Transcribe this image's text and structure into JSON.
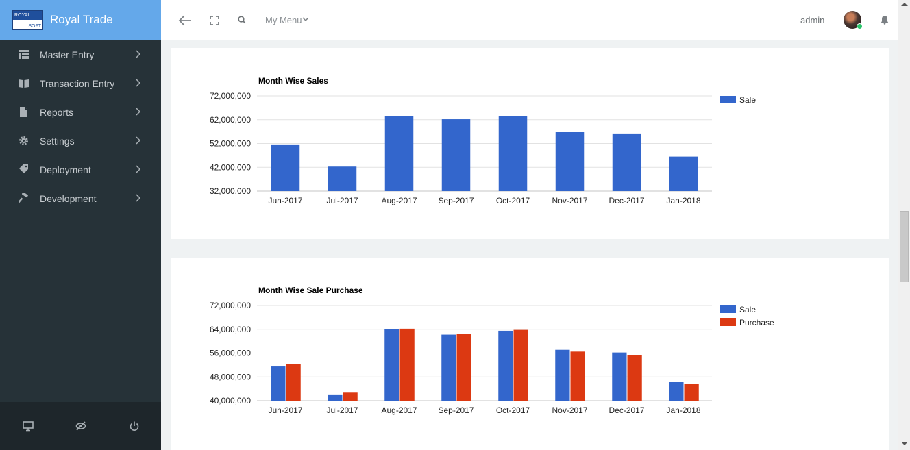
{
  "app": {
    "name": "Royal Trade",
    "logo_top": "ROYAL",
    "logo_bottom": "SOFT"
  },
  "sidebar": {
    "items": [
      {
        "label": "Master Entry",
        "icon": "table-icon"
      },
      {
        "label": "Transaction Entry",
        "icon": "book-icon"
      },
      {
        "label": "Reports",
        "icon": "file-icon"
      },
      {
        "label": "Settings",
        "icon": "gear-icon"
      },
      {
        "label": "Deployment",
        "icon": "tag-icon"
      },
      {
        "label": "Development",
        "icon": "hammer-icon"
      }
    ],
    "footer_icons": [
      "monitor-icon",
      "eye-off-icon",
      "power-icon"
    ]
  },
  "topbar": {
    "menu_label": "My Menu",
    "user_name": "admin",
    "icons": [
      "back-arrow-icon",
      "fullscreen-icon",
      "search-icon",
      "chevron-down-icon",
      "bell-icon"
    ]
  },
  "colors": {
    "sidebar_bg": "#263238",
    "brand_bg": "#64a8ea",
    "sale": "#3366cc",
    "purchase": "#dc3912"
  },
  "chart_data": [
    {
      "type": "bar",
      "title": "Month Wise Sales",
      "categories": [
        "Jun-2017",
        "Jul-2017",
        "Aug-2017",
        "Sep-2017",
        "Oct-2017",
        "Nov-2017",
        "Dec-2017",
        "Jan-2018"
      ],
      "series": [
        {
          "name": "Sale",
          "values": [
            51600000,
            42300000,
            63600000,
            62200000,
            63400000,
            57000000,
            56200000,
            46500000
          ]
        }
      ],
      "ylim": [
        32000000,
        72000000
      ],
      "yticks": [
        32000000,
        42000000,
        52000000,
        62000000,
        72000000
      ],
      "ytick_labels": [
        "32,000,000",
        "42,000,000",
        "52,000,000",
        "62,000,000",
        "72,000,000"
      ],
      "legend": "right",
      "grid": true
    },
    {
      "type": "bar",
      "title": "Month Wise Sale Purchase",
      "categories": [
        "Jun-2017",
        "Jul-2017",
        "Aug-2017",
        "Sep-2017",
        "Oct-2017",
        "Nov-2017",
        "Dec-2017",
        "Jan-2018"
      ],
      "series": [
        {
          "name": "Sale",
          "values": [
            51500000,
            42100000,
            64000000,
            62200000,
            63500000,
            57100000,
            56200000,
            46300000
          ]
        },
        {
          "name": "Purchase",
          "values": [
            52300000,
            42700000,
            64200000,
            62400000,
            63800000,
            56500000,
            55400000,
            45700000
          ]
        }
      ],
      "ylim": [
        40000000,
        72000000
      ],
      "yticks": [
        40000000,
        48000000,
        56000000,
        64000000,
        72000000
      ],
      "ytick_labels": [
        "40,000,000",
        "48,000,000",
        "56,000,000",
        "64,000,000",
        "72,000,000"
      ],
      "legend": "right",
      "grid": true
    }
  ]
}
